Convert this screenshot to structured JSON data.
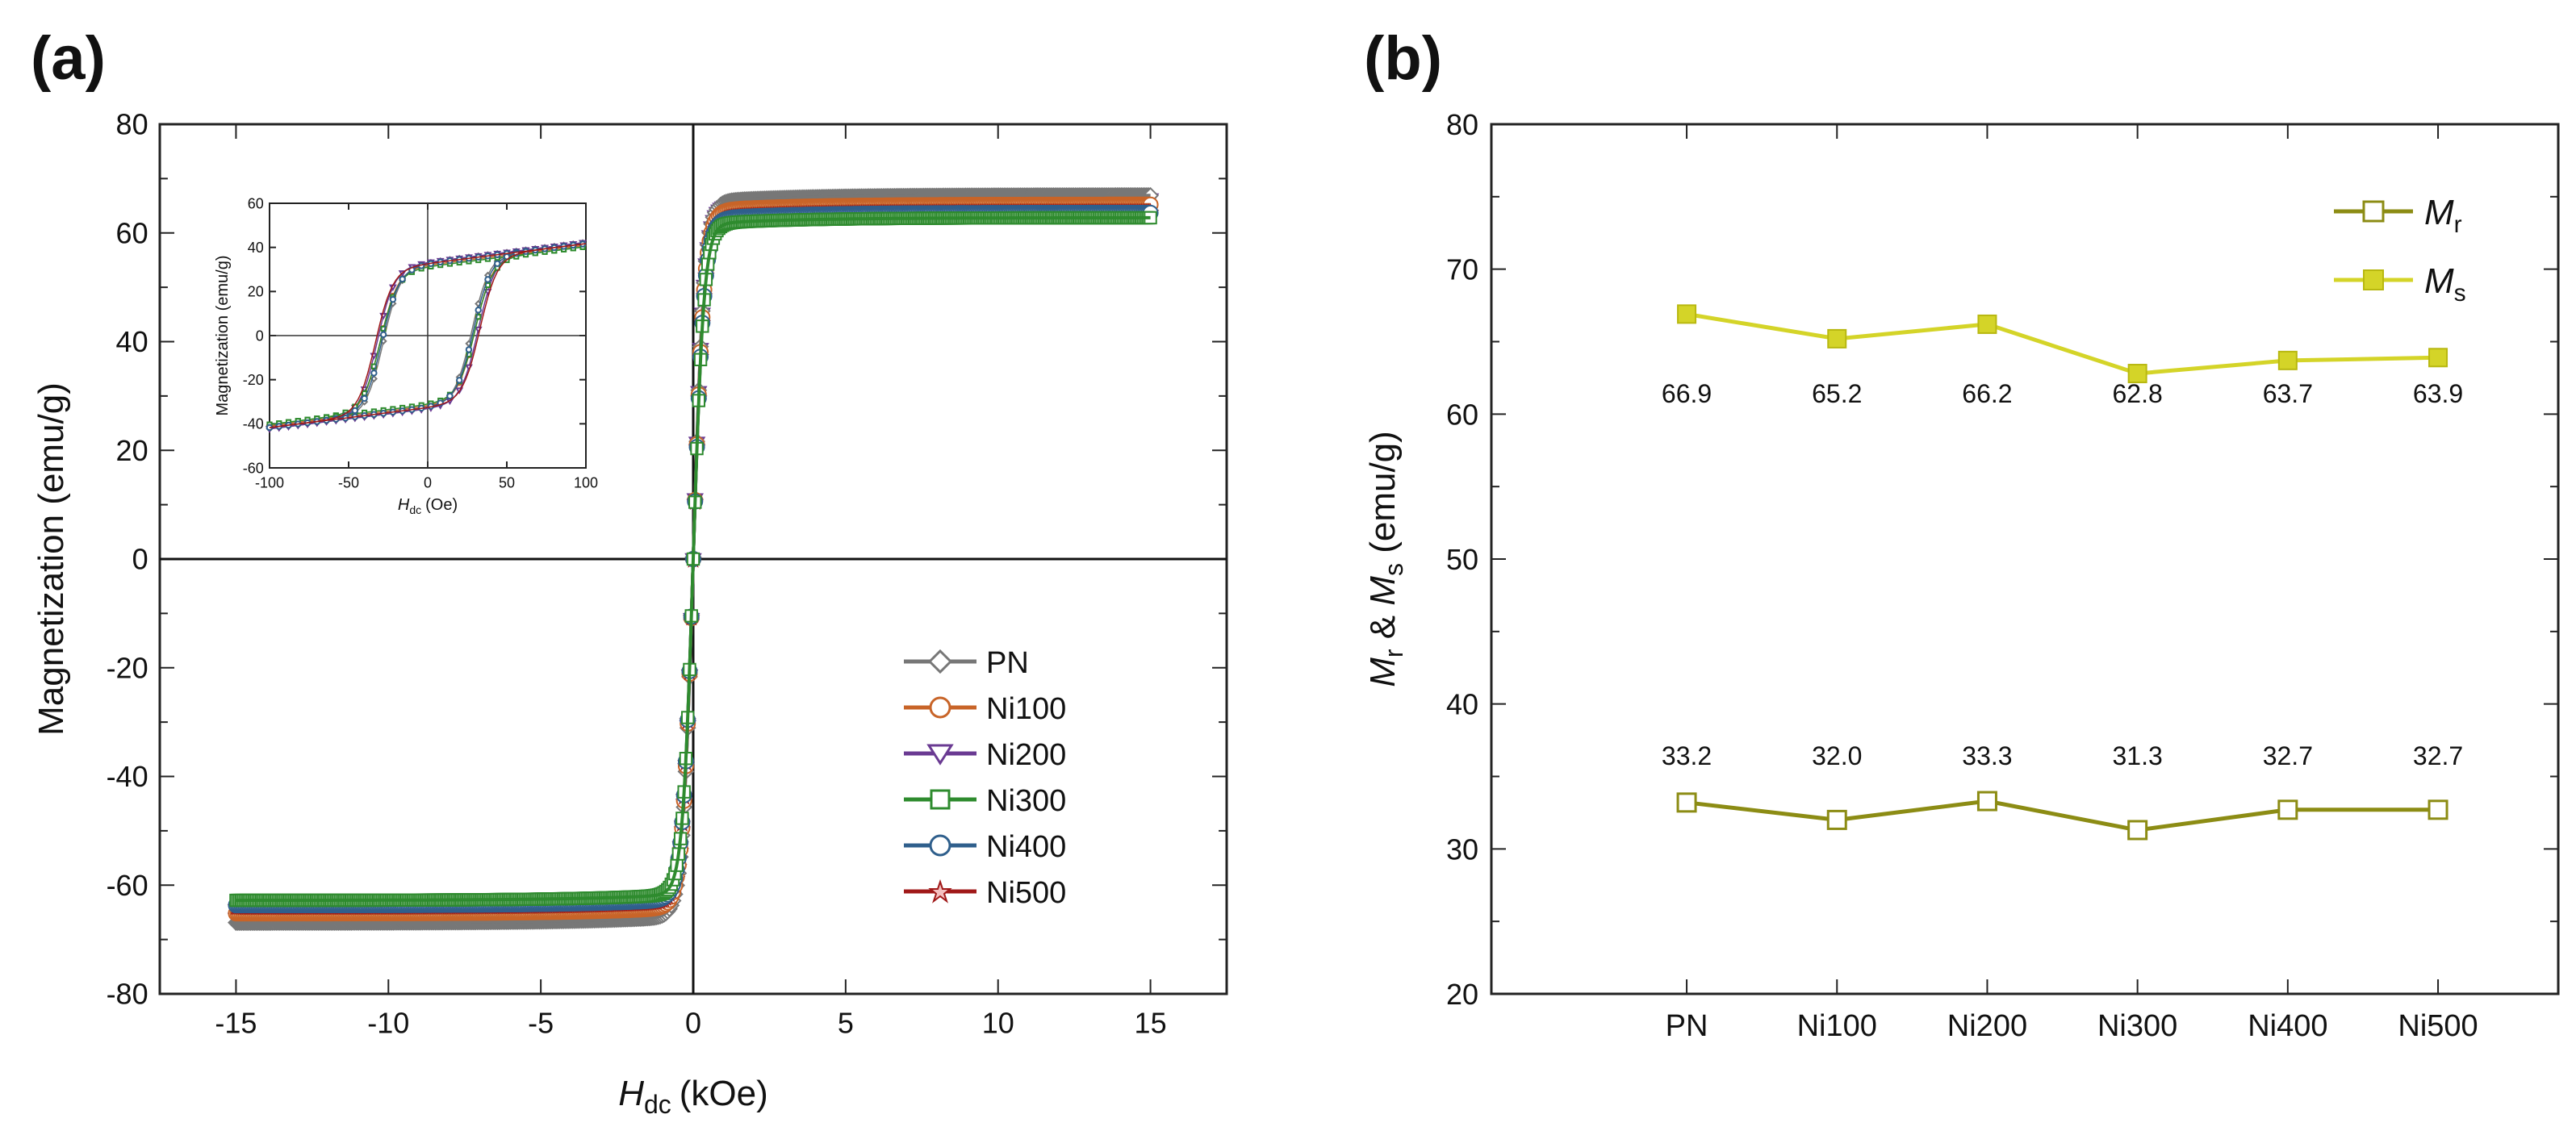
{
  "chart_data": [
    {
      "type": "line",
      "panel_label": "(a)",
      "ylabel": "Magnetization (emu/g)",
      "xlabel_main": "H",
      "xlabel_sub": "dc",
      "xlabel_unit": "(kOe)",
      "xlim": [
        -17.5,
        17.5
      ],
      "ylim": [
        -80,
        80
      ],
      "xticks": [
        -15,
        -10,
        -5,
        0,
        5,
        10,
        15
      ],
      "xtick_labels": [
        "-15",
        "-10",
        "-5",
        "0",
        "5",
        "10",
        "15"
      ],
      "yticks": [
        -80,
        -60,
        -40,
        -20,
        0,
        20,
        40,
        60,
        80
      ],
      "ytick_labels": [
        "-80",
        "-60",
        "-40",
        "-20",
        "0",
        "20",
        "40",
        "60",
        "80"
      ],
      "legend_position": "right",
      "series": [
        {
          "name": "PN",
          "color": "#777777",
          "marker": "diamond",
          "ms": 66.9,
          "mr": 33.2,
          "hc": 28
        },
        {
          "name": "Ni100",
          "color": "#c86428",
          "marker": "circle",
          "ms": 65.2,
          "mr": 32.0,
          "hc": 30
        },
        {
          "name": "Ni200",
          "color": "#6a3a92",
          "marker": "triangle-down",
          "ms": 66.2,
          "mr": 33.3,
          "hc": 32
        },
        {
          "name": "Ni300",
          "color": "#2e8b2e",
          "marker": "square",
          "ms": 62.8,
          "mr": 31.3,
          "hc": 30
        },
        {
          "name": "Ni400",
          "color": "#2f5f8c",
          "marker": "circle",
          "ms": 63.7,
          "mr": 32.7,
          "hc": 29
        },
        {
          "name": "Ni500",
          "color": "#a01818",
          "marker": "star",
          "ms": 63.9,
          "mr": 32.7,
          "hc": 33
        }
      ],
      "inset": {
        "ylabel": "Magnetization (emu/g)",
        "xlabel_main": "H",
        "xlabel_sub": "dc",
        "xlabel_unit": "(Oe)",
        "xlim": [
          -100,
          100
        ],
        "ylim": [
          -60,
          60
        ],
        "xticks": [
          -100,
          -50,
          0,
          50,
          100
        ],
        "xtick_labels": [
          "-100",
          "-50",
          "0",
          "50",
          "100"
        ],
        "yticks": [
          -60,
          -40,
          -20,
          0,
          20,
          40,
          60
        ],
        "ytick_labels": [
          "-60",
          "-40",
          "-20",
          "0",
          "20",
          "40",
          "60"
        ]
      }
    },
    {
      "type": "line",
      "panel_label": "(b)",
      "ylabel_parts": [
        "M",
        "r",
        " & ",
        "M",
        "s",
        " (emu/g)"
      ],
      "categories": [
        "PN",
        "Ni100",
        "Ni200",
        "Ni300",
        "Ni400",
        "Ni500"
      ],
      "ylim": [
        20,
        80
      ],
      "yticks": [
        20,
        30,
        40,
        50,
        60,
        70,
        80
      ],
      "ytick_labels": [
        "20",
        "30",
        "40",
        "50",
        "60",
        "70",
        "80"
      ],
      "legend_position": "top-right",
      "series": [
        {
          "name_main": "M",
          "name_sub": "r",
          "color": "#8c8c14",
          "marker": "open-square",
          "values": [
            33.2,
            32.0,
            33.3,
            31.3,
            32.7,
            32.7
          ],
          "labels": [
            "33.2",
            "32.0",
            "33.3",
            "31.3",
            "32.7",
            "32.7"
          ]
        },
        {
          "name_main": "M",
          "name_sub": "s",
          "color": "#d4d428",
          "marker": "filled-square",
          "values": [
            66.9,
            65.2,
            66.2,
            62.8,
            63.7,
            63.9
          ],
          "labels": [
            "66.9",
            "65.2",
            "66.2",
            "62.8",
            "63.7",
            "63.9"
          ]
        }
      ]
    }
  ]
}
